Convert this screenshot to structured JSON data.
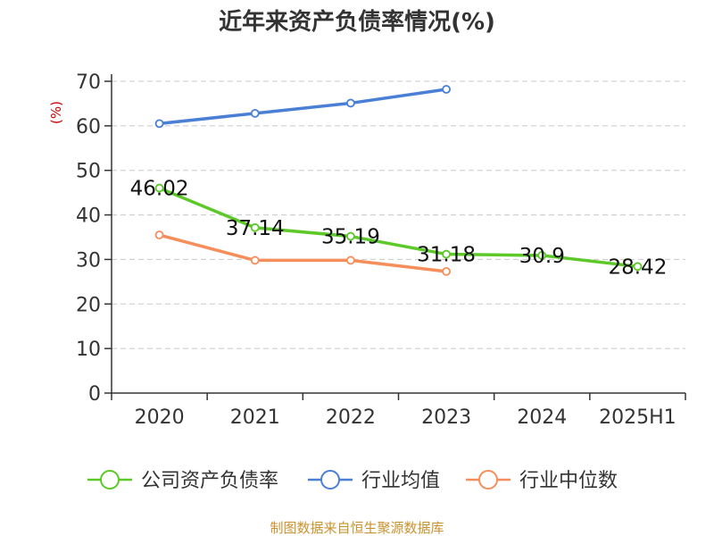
{
  "chart_data": {
    "type": "line",
    "title": "近年来资产负债率情况(%)",
    "ylabel": "(%)",
    "xlabel": "",
    "categories": [
      "2020",
      "2021",
      "2022",
      "2023",
      "2024",
      "2025H1"
    ],
    "ylim": [
      0,
      70
    ],
    "yticks": [
      0,
      10,
      20,
      30,
      40,
      50,
      60,
      70
    ],
    "grid": true,
    "legend_position": "bottom",
    "series": [
      {
        "name": "公司资产负债率",
        "color": "#5cc929",
        "values": [
          46.02,
          37.14,
          35.19,
          31.18,
          30.9,
          28.42
        ],
        "labels": [
          "46.02",
          "37.14",
          "35.19",
          "31.18",
          "30.9",
          "28.42"
        ]
      },
      {
        "name": "行业均值",
        "color": "#4a7fd6",
        "values": [
          60.5,
          62.8,
          65.1,
          68.2,
          null,
          null
        ]
      },
      {
        "name": "行业中位数",
        "color": "#f58e5b",
        "values": [
          35.5,
          29.8,
          29.8,
          27.3,
          null,
          null
        ]
      }
    ]
  },
  "source": "制图数据来自恒生聚源数据库"
}
